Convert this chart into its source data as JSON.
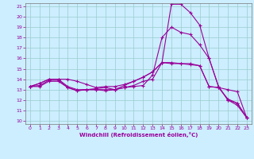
{
  "xlabel": "Windchill (Refroidissement éolien,°C)",
  "bg_color": "#cceeff",
  "line_color": "#990099",
  "grid_color": "#99cccc",
  "xlim": [
    -0.5,
    23.5
  ],
  "ylim": [
    9.7,
    21.3
  ],
  "xticks": [
    0,
    1,
    2,
    3,
    4,
    5,
    6,
    7,
    8,
    9,
    10,
    11,
    12,
    13,
    14,
    15,
    16,
    17,
    18,
    19,
    20,
    21,
    22,
    23
  ],
  "yticks": [
    10,
    11,
    12,
    13,
    14,
    15,
    16,
    17,
    18,
    19,
    20,
    21
  ],
  "line1_x": [
    0,
    1,
    2,
    3,
    4,
    5,
    6,
    7,
    8,
    9,
    10,
    11,
    12,
    13,
    14,
    15,
    16,
    17,
    18,
    19,
    20,
    21,
    22,
    23
  ],
  "line1_y": [
    13.3,
    13.6,
    14.0,
    14.0,
    14.0,
    13.8,
    13.5,
    13.2,
    13.3,
    13.3,
    13.5,
    13.8,
    14.2,
    14.7,
    15.6,
    15.6,
    15.5,
    15.4,
    15.3,
    13.3,
    13.2,
    13.0,
    12.8,
    10.3
  ],
  "line2_x": [
    0,
    1,
    2,
    3,
    4,
    5,
    6,
    7,
    8,
    9,
    10,
    11,
    12,
    13,
    14,
    15,
    16,
    17,
    18,
    19,
    20,
    21,
    22,
    23
  ],
  "line2_y": [
    13.3,
    13.6,
    14.0,
    14.0,
    13.3,
    13.0,
    13.0,
    13.1,
    13.2,
    13.0,
    13.4,
    13.8,
    14.2,
    14.7,
    15.6,
    21.2,
    21.2,
    20.4,
    19.2,
    16.0,
    13.3,
    12.0,
    11.7,
    10.3
  ],
  "line3_x": [
    0,
    1,
    2,
    3,
    4,
    5,
    6,
    7,
    8,
    9,
    10,
    11,
    12,
    13,
    14,
    15,
    16,
    17,
    18,
    19,
    20,
    21,
    22,
    23
  ],
  "line3_y": [
    13.3,
    13.4,
    13.9,
    13.9,
    13.2,
    12.9,
    13.0,
    13.0,
    13.0,
    13.0,
    13.2,
    13.3,
    13.4,
    14.4,
    18.0,
    19.0,
    18.5,
    18.3,
    17.3,
    16.0,
    13.3,
    12.0,
    11.5,
    10.3
  ],
  "line4_x": [
    0,
    1,
    2,
    3,
    4,
    5,
    6,
    7,
    8,
    9,
    10,
    11,
    12,
    13,
    14,
    15,
    16,
    17,
    18,
    19,
    20,
    21,
    22,
    23
  ],
  "line4_y": [
    13.3,
    13.3,
    13.8,
    13.8,
    13.2,
    12.9,
    13.0,
    13.0,
    12.9,
    13.0,
    13.2,
    13.4,
    13.8,
    14.0,
    15.6,
    15.5,
    15.5,
    15.5,
    15.3,
    13.3,
    13.2,
    12.1,
    11.7,
    10.3
  ]
}
